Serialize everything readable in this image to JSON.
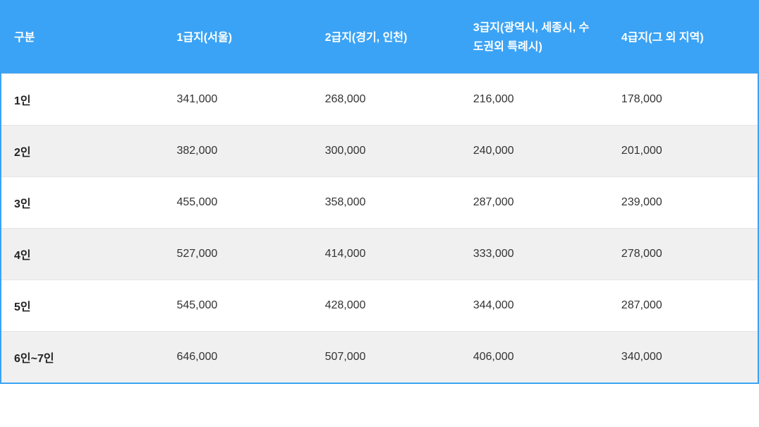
{
  "table": {
    "type": "table",
    "header_background": "#3ba3f5",
    "header_text_color": "#ffffff",
    "border_color": "#3ba3f5",
    "row_odd_background": "#ffffff",
    "row_even_background": "#f0f0f0",
    "cell_text_color": "#333333",
    "row_label_color": "#222222",
    "font_size": 16,
    "header_font_weight": 700,
    "row_label_font_weight": 700,
    "columns": [
      {
        "label": "구분",
        "width_pct": 21.5
      },
      {
        "label": "1급지(서울)",
        "width_pct": 19.6
      },
      {
        "label": "2급지(경기, 인천)",
        "width_pct": 19.6
      },
      {
        "label": "3급지(광역시, 세종시, 수도권외 특례시)",
        "width_pct": 19.6
      },
      {
        "label": "4급지(그 외 지역)",
        "width_pct": 19.7
      }
    ],
    "rows": [
      {
        "label": "1인",
        "values": [
          "341,000",
          "268,000",
          "216,000",
          "178,000"
        ]
      },
      {
        "label": "2인",
        "values": [
          "382,000",
          "300,000",
          "240,000",
          "201,000"
        ]
      },
      {
        "label": "3인",
        "values": [
          "455,000",
          "358,000",
          "287,000",
          "239,000"
        ]
      },
      {
        "label": "4인",
        "values": [
          "527,000",
          "414,000",
          "333,000",
          "278,000"
        ]
      },
      {
        "label": "5인",
        "values": [
          "545,000",
          "428,000",
          "344,000",
          "287,000"
        ]
      },
      {
        "label": "6인~7인",
        "values": [
          "646,000",
          "507,000",
          "406,000",
          "340,000"
        ]
      }
    ]
  }
}
